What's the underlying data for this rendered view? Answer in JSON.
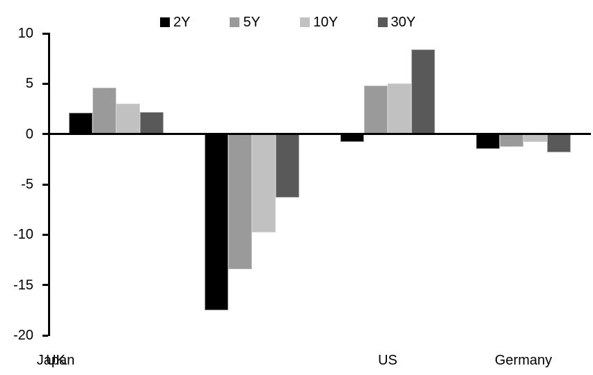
{
  "chart_data": {
    "type": "bar",
    "title": "",
    "xlabel": "",
    "ylabel": "",
    "categories": [
      "US",
      "Germany",
      "UK",
      "Japan"
    ],
    "series": [
      {
        "name": "2Y",
        "color": "#000000",
        "values": [
          2.1,
          -17.5,
          -0.8,
          -1.5
        ]
      },
      {
        "name": "5Y",
        "color": "#9A9A9A",
        "values": [
          4.6,
          -13.4,
          4.8,
          -1.3
        ]
      },
      {
        "name": "10Y",
        "color": "#C1C1C1",
        "values": [
          3.0,
          -9.8,
          5.0,
          -0.8
        ]
      },
      {
        "name": "30Y",
        "color": "#595959",
        "values": [
          2.2,
          -6.3,
          8.4,
          -1.8
        ]
      }
    ],
    "ylim": [
      -20,
      10
    ],
    "yticks": [
      10,
      5,
      0,
      -5,
      -10,
      -15,
      -20
    ],
    "legend_position": "top",
    "grid": false,
    "axis_color": "#000000",
    "background_color": "#ffffff"
  }
}
